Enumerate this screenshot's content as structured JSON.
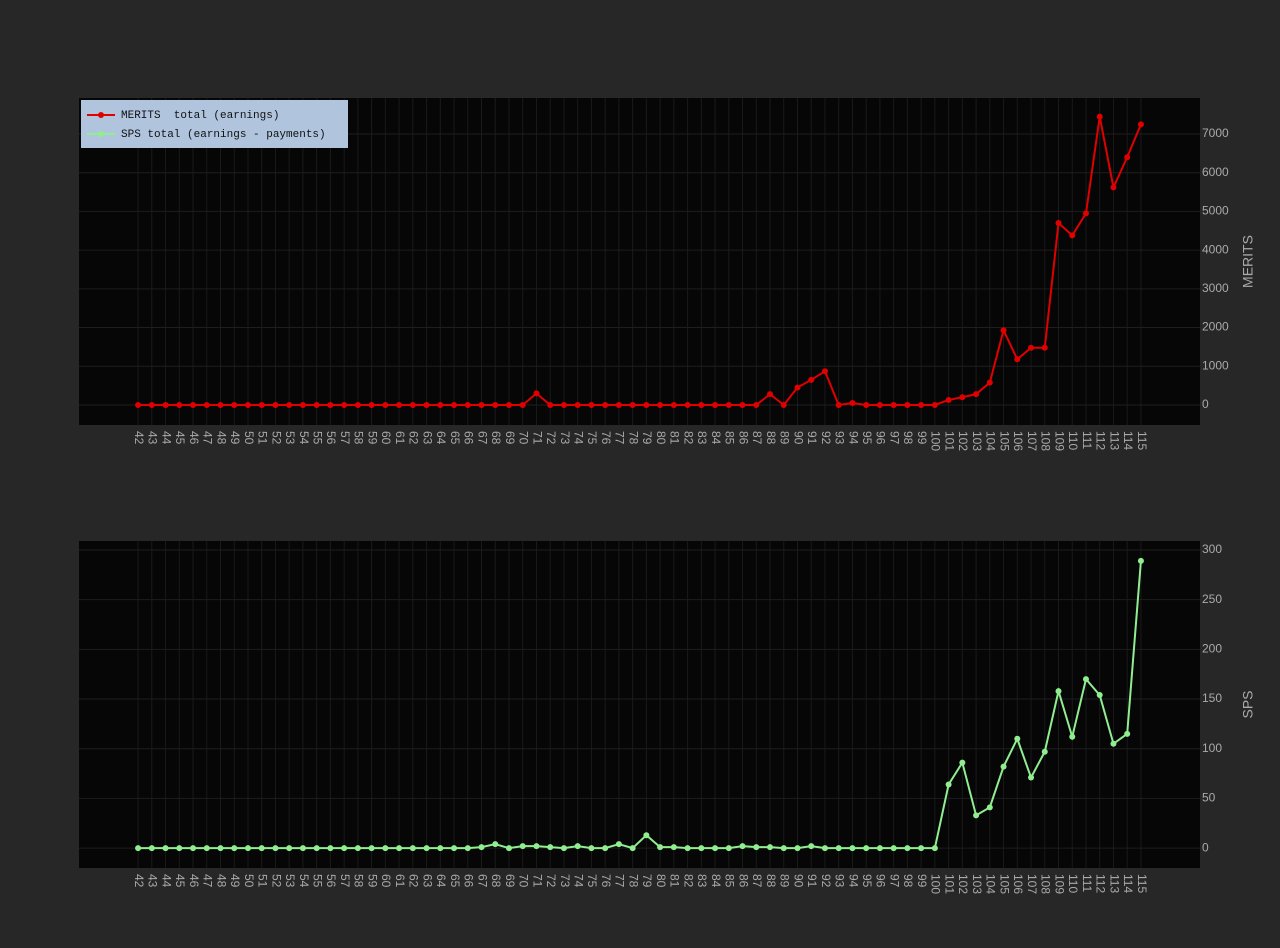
{
  "chart_data": [
    {
      "type": "line",
      "categories": [
        42,
        43,
        44,
        45,
        46,
        47,
        48,
        49,
        50,
        51,
        52,
        53,
        54,
        55,
        56,
        57,
        58,
        59,
        60,
        61,
        62,
        63,
        64,
        65,
        66,
        67,
        68,
        69,
        70,
        71,
        72,
        73,
        74,
        75,
        76,
        77,
        78,
        79,
        80,
        81,
        82,
        83,
        84,
        85,
        86,
        87,
        88,
        89,
        90,
        91,
        92,
        93,
        94,
        95,
        96,
        97,
        98,
        99,
        100,
        101,
        102,
        103,
        104,
        105,
        106,
        107,
        108,
        109,
        110,
        111,
        112,
        113,
        114,
        115
      ],
      "series": [
        {
          "name": "MERITS  total (earnings)",
          "color": "#e00000",
          "values": [
            0,
            0,
            0,
            0,
            0,
            0,
            0,
            0,
            0,
            0,
            0,
            0,
            0,
            0,
            0,
            0,
            0,
            0,
            0,
            0,
            0,
            0,
            0,
            0,
            0,
            0,
            0,
            0,
            0,
            300,
            0,
            0,
            0,
            0,
            0,
            0,
            0,
            0,
            0,
            0,
            0,
            0,
            0,
            0,
            0,
            0,
            280,
            0,
            450,
            650,
            870,
            0,
            50,
            0,
            0,
            0,
            0,
            0,
            0,
            130,
            200,
            280,
            580,
            1930,
            1180,
            1480,
            1480,
            4700,
            4380,
            4950,
            7450,
            5620,
            6400,
            7250
          ]
        }
      ],
      "y_label": "MERITS",
      "ylim": [
        -517,
        7930
      ],
      "yticks": [
        0,
        1000,
        2000,
        3000,
        4000,
        5000,
        6000,
        7000
      ],
      "grid": true,
      "legend": "top-left"
    },
    {
      "type": "line",
      "categories": [
        42,
        43,
        44,
        45,
        46,
        47,
        48,
        49,
        50,
        51,
        52,
        53,
        54,
        55,
        56,
        57,
        58,
        59,
        60,
        61,
        62,
        63,
        64,
        65,
        66,
        67,
        68,
        69,
        70,
        71,
        72,
        73,
        74,
        75,
        76,
        77,
        78,
        79,
        80,
        81,
        82,
        83,
        84,
        85,
        86,
        87,
        88,
        89,
        90,
        91,
        92,
        93,
        94,
        95,
        96,
        97,
        98,
        99,
        100,
        101,
        102,
        103,
        104,
        105,
        106,
        107,
        108,
        109,
        110,
        111,
        112,
        113,
        114,
        115
      ],
      "series": [
        {
          "name": "SPS total (earnings - payments)",
          "color": "#90ee90",
          "values": [
            0,
            0,
            0,
            0,
            0,
            0,
            0,
            0,
            0,
            0,
            0,
            0,
            0,
            0,
            0,
            0,
            0,
            0,
            0,
            0,
            0,
            0,
            0,
            0,
            0,
            1,
            4,
            0,
            2,
            2,
            1,
            0,
            2,
            0,
            0,
            4,
            0,
            13,
            1,
            1,
            0,
            0,
            0,
            0,
            2,
            1,
            1,
            0,
            0,
            2,
            0,
            0,
            0,
            0,
            0,
            0,
            0,
            0,
            0,
            64,
            86,
            33,
            41,
            82,
            110,
            71,
            97,
            158,
            112,
            170,
            154,
            105,
            115,
            289
          ]
        }
      ],
      "y_label": "SPS",
      "ylim": [
        -20,
        309
      ],
      "yticks": [
        0,
        50,
        100,
        150,
        200,
        250,
        300
      ],
      "grid": true
    }
  ]
}
